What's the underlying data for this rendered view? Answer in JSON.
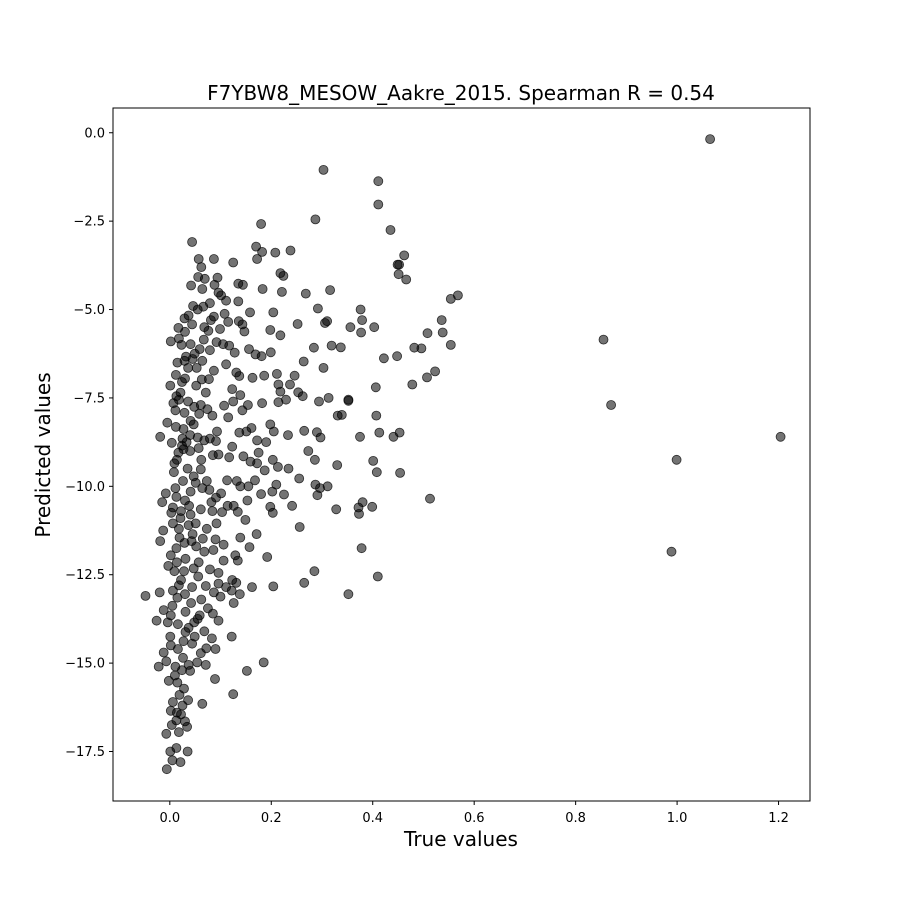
{
  "chart_data": {
    "type": "scatter",
    "title": "F7YBW8_MESOW_Aakre_2015. Spearman R = 0.54",
    "xlabel": "True values",
    "ylabel": "Predicted values",
    "xlim": [
      -0.112,
      1.262
    ],
    "ylim": [
      -18.9,
      0.7
    ],
    "xticks": [
      0.0,
      0.2,
      0.4,
      0.6,
      0.8,
      1.0,
      1.2
    ],
    "xtick_labels": [
      "0.0",
      "0.2",
      "0.4",
      "0.6",
      "0.8",
      "1.0",
      "1.2"
    ],
    "yticks": [
      0.0,
      -2.5,
      -5.0,
      -7.5,
      -10.0,
      -12.5,
      -15.0,
      -17.5
    ],
    "ytick_labels": [
      "0.0",
      "−2.5",
      "−5.0",
      "−7.5",
      "−10.0",
      "−12.5",
      "−15.0",
      "−17.5"
    ],
    "grid": false,
    "marker_color": "#000000",
    "marker_alpha": 0.55,
    "points": [
      [
        1.065,
        -0.18
      ],
      [
        0.303,
        -1.05
      ],
      [
        0.411,
        -1.37
      ],
      [
        0.411,
        -2.03
      ],
      [
        0.287,
        -2.45
      ],
      [
        0.18,
        -2.58
      ],
      [
        0.435,
        -2.75
      ],
      [
        0.044,
        -3.09
      ],
      [
        0.17,
        -3.22
      ],
      [
        0.182,
        -3.37
      ],
      [
        0.208,
        -3.39
      ],
      [
        0.238,
        -3.33
      ],
      [
        0.462,
        -3.47
      ],
      [
        0.057,
        -3.57
      ],
      [
        0.087,
        -3.57
      ],
      [
        0.125,
        -3.67
      ],
      [
        0.172,
        -3.57
      ],
      [
        0.062,
        -3.8
      ],
      [
        0.218,
        -3.97
      ],
      [
        0.224,
        -4.05
      ],
      [
        0.449,
        -3.73
      ],
      [
        0.452,
        -3.73
      ],
      [
        0.451,
        -4.0
      ],
      [
        0.466,
        -4.15
      ],
      [
        0.056,
        -4.08
      ],
      [
        0.069,
        -4.13
      ],
      [
        0.094,
        -4.1
      ],
      [
        0.135,
        -4.27
      ],
      [
        0.144,
        -4.3
      ],
      [
        0.088,
        -4.3
      ],
      [
        0.042,
        -4.32
      ],
      [
        0.064,
        -4.42
      ],
      [
        0.183,
        -4.42
      ],
      [
        0.221,
        -4.5
      ],
      [
        0.268,
        -4.55
      ],
      [
        0.096,
        -4.52
      ],
      [
        0.101,
        -4.6
      ],
      [
        0.111,
        -4.75
      ],
      [
        0.135,
        -4.77
      ],
      [
        0.079,
        -4.82
      ],
      [
        0.066,
        -4.92
      ],
      [
        0.055,
        -5.0
      ],
      [
        0.046,
        -4.9
      ],
      [
        0.158,
        -5.08
      ],
      [
        0.204,
        -5.08
      ],
      [
        0.292,
        -4.97
      ],
      [
        0.316,
        -4.45
      ],
      [
        0.376,
        -5.0
      ],
      [
        0.568,
        -4.6
      ],
      [
        0.554,
        -4.7
      ],
      [
        0.536,
        -5.3
      ],
      [
        0.538,
        -5.65
      ],
      [
        0.554,
        -6.0
      ],
      [
        0.508,
        -5.67
      ],
      [
        0.403,
        -5.5
      ],
      [
        0.379,
        -5.3
      ],
      [
        0.377,
        -5.65
      ],
      [
        0.356,
        -5.5
      ],
      [
        0.31,
        -5.33
      ],
      [
        0.306,
        -5.38
      ],
      [
        0.252,
        -5.41
      ],
      [
        0.218,
        -5.73
      ],
      [
        0.198,
        -5.58
      ],
      [
        0.143,
        -5.42
      ],
      [
        0.136,
        -5.33
      ],
      [
        0.115,
        -5.35
      ],
      [
        0.108,
        -5.12
      ],
      [
        0.087,
        -5.2
      ],
      [
        0.037,
        -5.17
      ],
      [
        0.029,
        -5.25
      ],
      [
        0.044,
        -5.42
      ],
      [
        0.068,
        -5.5
      ],
      [
        0.076,
        -5.6
      ],
      [
        0.017,
        -5.52
      ],
      [
        0.03,
        -5.63
      ],
      [
        0.018,
        -5.82
      ],
      [
        0.002,
        -5.9
      ],
      [
        0.023,
        -6.0
      ],
      [
        0.041,
        -5.98
      ],
      [
        0.059,
        -6.12
      ],
      [
        0.092,
        -5.92
      ],
      [
        0.105,
        -5.98
      ],
      [
        0.117,
        -6.02
      ],
      [
        0.128,
        -6.22
      ],
      [
        0.156,
        -6.12
      ],
      [
        0.169,
        -6.27
      ],
      [
        0.181,
        -6.32
      ],
      [
        0.199,
        -6.21
      ],
      [
        0.147,
        -5.62
      ],
      [
        0.284,
        -6.08
      ],
      [
        0.319,
        -6.02
      ],
      [
        0.337,
        -6.07
      ],
      [
        0.422,
        -6.38
      ],
      [
        0.448,
        -6.32
      ],
      [
        0.482,
        -6.08
      ],
      [
        0.496,
        -6.1
      ],
      [
        0.523,
        -6.75
      ],
      [
        0.507,
        -6.92
      ],
      [
        0.478,
        -7.12
      ],
      [
        0.406,
        -7.2
      ],
      [
        0.352,
        -7.55
      ],
      [
        0.313,
        -7.5
      ],
      [
        0.303,
        -6.65
      ],
      [
        0.264,
        -6.47
      ],
      [
        0.246,
        -6.87
      ],
      [
        0.211,
        -6.82
      ],
      [
        0.214,
        -7.12
      ],
      [
        0.218,
        -7.32
      ],
      [
        0.237,
        -7.12
      ],
      [
        0.253,
        -7.34
      ],
      [
        0.186,
        -6.87
      ],
      [
        0.163,
        -6.93
      ],
      [
        0.137,
        -6.88
      ],
      [
        0.131,
        -6.78
      ],
      [
        0.087,
        -6.73
      ],
      [
        0.077,
        -6.97
      ],
      [
        0.063,
        -6.98
      ],
      [
        0.053,
        -6.65
      ],
      [
        0.045,
        -6.4
      ],
      [
        0.032,
        -6.33
      ],
      [
        0.029,
        -6.45
      ],
      [
        0.015,
        -6.5
      ],
      [
        0.012,
        -6.85
      ],
      [
        0.03,
        -6.95
      ],
      [
        0.001,
        -7.15
      ],
      [
        0.021,
        -7.35
      ],
      [
        0.018,
        -7.55
      ],
      [
        0.036,
        -7.6
      ],
      [
        0.007,
        -7.65
      ],
      [
        0.011,
        -7.85
      ],
      [
        0.029,
        -7.92
      ],
      [
        0.048,
        -7.75
      ],
      [
        0.061,
        -7.7
      ],
      [
        0.074,
        -7.82
      ],
      [
        0.084,
        -8.0
      ],
      [
        0.107,
        -7.72
      ],
      [
        0.125,
        -7.6
      ],
      [
        0.139,
        -7.42
      ],
      [
        0.154,
        -7.7
      ],
      [
        0.182,
        -7.65
      ],
      [
        0.214,
        -7.62
      ],
      [
        0.229,
        -7.55
      ],
      [
        0.262,
        -7.45
      ],
      [
        0.294,
        -7.6
      ],
      [
        0.331,
        -8.0
      ],
      [
        0.339,
        -7.98
      ],
      [
        0.352,
        -7.58
      ],
      [
        0.407,
        -8.0
      ],
      [
        0.413,
        -8.48
      ],
      [
        0.441,
        -8.6
      ],
      [
        0.453,
        -8.48
      ],
      [
        0.375,
        -8.6
      ],
      [
        0.297,
        -8.62
      ],
      [
        0.29,
        -8.47
      ],
      [
        0.265,
        -8.43
      ],
      [
        0.233,
        -8.55
      ],
      [
        0.205,
        -8.45
      ],
      [
        0.198,
        -8.25
      ],
      [
        0.19,
        -8.75
      ],
      [
        0.172,
        -8.7
      ],
      [
        0.151,
        -8.45
      ],
      [
        0.137,
        -8.48
      ],
      [
        0.123,
        -8.88
      ],
      [
        0.091,
        -8.72
      ],
      [
        0.079,
        -8.65
      ],
      [
        0.068,
        -8.7
      ],
      [
        0.055,
        -8.62
      ],
      [
        0.04,
        -8.55
      ],
      [
        0.027,
        -8.38
      ],
      [
        0.012,
        -8.32
      ],
      [
        -0.005,
        -8.2
      ],
      [
        -0.019,
        -8.6
      ],
      [
        0.004,
        -8.77
      ],
      [
        0.024,
        -8.85
      ],
      [
        0.04,
        -9.0
      ],
      [
        0.057,
        -8.92
      ],
      [
        0.085,
        -9.12
      ],
      [
        0.096,
        -9.1
      ],
      [
        0.117,
        -9.18
      ],
      [
        0.145,
        -9.15
      ],
      [
        0.159,
        -9.3
      ],
      [
        0.172,
        -9.35
      ],
      [
        0.203,
        -9.25
      ],
      [
        0.213,
        -9.45
      ],
      [
        0.234,
        -9.5
      ],
      [
        0.273,
        -9.0
      ],
      [
        0.286,
        -9.25
      ],
      [
        0.33,
        -9.4
      ],
      [
        0.401,
        -9.28
      ],
      [
        0.408,
        -9.6
      ],
      [
        0.454,
        -9.62
      ],
      [
        0.513,
        -10.35
      ],
      [
        0.399,
        -10.58
      ],
      [
        0.38,
        -10.45
      ],
      [
        0.372,
        -10.6
      ],
      [
        0.373,
        -10.78
      ],
      [
        0.328,
        -10.65
      ],
      [
        0.311,
        -10.0
      ],
      [
        0.296,
        -10.05
      ],
      [
        0.287,
        -9.95
      ],
      [
        0.291,
        -10.25
      ],
      [
        0.255,
        -9.78
      ],
      [
        0.225,
        -10.23
      ],
      [
        0.202,
        -10.15
      ],
      [
        0.18,
        -10.22
      ],
      [
        0.168,
        -9.83
      ],
      [
        0.155,
        -10.0
      ],
      [
        0.139,
        -10.0
      ],
      [
        0.132,
        -9.85
      ],
      [
        0.113,
        -9.83
      ],
      [
        0.101,
        -10.2
      ],
      [
        0.091,
        -10.32
      ],
      [
        0.078,
        -10.1
      ],
      [
        0.064,
        -10.05
      ],
      [
        0.051,
        -9.9
      ],
      [
        0.041,
        -10.15
      ],
      [
        0.03,
        -10.4
      ],
      [
        0.013,
        -10.3
      ],
      [
        -0.008,
        -10.2
      ],
      [
        -0.015,
        -10.45
      ],
      [
        0.006,
        -10.6
      ],
      [
        0.022,
        -10.7
      ],
      [
        0.041,
        -10.8
      ],
      [
        0.061,
        -10.65
      ],
      [
        0.084,
        -10.7
      ],
      [
        0.103,
        -10.73
      ],
      [
        0.114,
        -10.55
      ],
      [
        0.126,
        -10.55
      ],
      [
        0.134,
        -10.72
      ],
      [
        0.153,
        -10.4
      ],
      [
        0.198,
        -10.58
      ],
      [
        0.203,
        -10.75
      ],
      [
        0.378,
        -11.75
      ],
      [
        0.41,
        -12.55
      ],
      [
        0.352,
        -13.05
      ],
      [
        0.285,
        -12.4
      ],
      [
        0.265,
        -12.73
      ],
      [
        0.204,
        -12.83
      ],
      [
        0.192,
        -12.0
      ],
      [
        0.157,
        -11.72
      ],
      [
        0.139,
        -11.45
      ],
      [
        0.134,
        -12.1
      ],
      [
        0.123,
        -12.65
      ],
      [
        0.122,
        -12.95
      ],
      [
        0.131,
        -12.73
      ],
      [
        0.126,
        -13.3
      ],
      [
        0.162,
        -12.85
      ],
      [
        0.106,
        -12.1
      ],
      [
        0.096,
        -12.45
      ],
      [
        0.086,
        -11.8
      ],
      [
        0.09,
        -11.5
      ],
      [
        0.073,
        -11.2
      ],
      [
        0.065,
        -11.48
      ],
      [
        0.052,
        -11.7
      ],
      [
        0.045,
        -11.35
      ],
      [
        0.029,
        -11.6
      ],
      [
        0.018,
        -11.2
      ],
      [
        0.006,
        -11.05
      ],
      [
        -0.013,
        -11.25
      ],
      [
        -0.019,
        -11.55
      ],
      [
        0.002,
        -11.95
      ],
      [
        0.014,
        -12.15
      ],
      [
        0.028,
        -12.4
      ],
      [
        0.047,
        -12.32
      ],
      [
        0.056,
        -12.55
      ],
      [
        0.071,
        -12.82
      ],
      [
        0.087,
        -13.0
      ],
      [
        0.096,
        -12.75
      ],
      [
        0.1,
        -13.12
      ],
      [
        0.085,
        -13.6
      ],
      [
        0.075,
        -13.45
      ],
      [
        0.062,
        -13.2
      ],
      [
        0.042,
        -13.3
      ],
      [
        0.03,
        -13.05
      ],
      [
        0.015,
        -13.15
      ],
      [
        0.005,
        -13.38
      ],
      [
        -0.012,
        -13.5
      ],
      [
        -0.02,
        -13.0
      ],
      [
        -0.048,
        -13.1
      ],
      [
        -0.026,
        -13.8
      ],
      [
        -0.004,
        -13.85
      ],
      [
        0.016,
        -13.9
      ],
      [
        0.037,
        -14.0
      ],
      [
        0.055,
        -13.75
      ],
      [
        0.068,
        -14.1
      ],
      [
        0.083,
        -14.3
      ],
      [
        0.096,
        -13.8
      ],
      [
        0.122,
        -14.25
      ],
      [
        0.09,
        -14.6
      ],
      [
        0.072,
        -14.58
      ],
      [
        0.061,
        -14.72
      ],
      [
        0.054,
        -14.98
      ],
      [
        0.044,
        -14.45
      ],
      [
        0.027,
        -14.38
      ],
      [
        0.016,
        -14.6
      ],
      [
        0.002,
        -14.5
      ],
      [
        -0.012,
        -14.7
      ],
      [
        -0.007,
        -14.95
      ],
      [
        0.011,
        -15.1
      ],
      [
        0.024,
        -15.2
      ],
      [
        -0.022,
        -15.1
      ],
      [
        -0.002,
        -15.5
      ],
      [
        0.015,
        -15.55
      ],
      [
        0.028,
        -15.72
      ],
      [
        0.019,
        -15.9
      ],
      [
        0.006,
        -16.1
      ],
      [
        0.002,
        -16.35
      ],
      [
        0.014,
        -16.4
      ],
      [
        0.025,
        -16.2
      ],
      [
        0.013,
        -16.62
      ],
      [
        0.004,
        -16.75
      ],
      [
        0.03,
        -16.65
      ],
      [
        0.034,
        -16.8
      ],
      [
        -0.007,
        -17.0
      ],
      [
        0.001,
        -17.5
      ],
      [
        0.013,
        -17.4
      ],
      [
        0.035,
        -17.5
      ],
      [
        0.005,
        -17.75
      ],
      [
        0.021,
        -17.8
      ],
      [
        -0.006,
        -18.0
      ],
      [
        0.125,
        -15.88
      ],
      [
        0.152,
        -15.22
      ],
      [
        0.185,
        -14.98
      ],
      [
        0.855,
        -5.85
      ],
      [
        0.87,
        -7.7
      ],
      [
        1.204,
        -8.6
      ],
      [
        0.999,
        -9.25
      ],
      [
        0.989,
        -11.85
      ],
      [
        0.04,
        -15.22
      ],
      [
        0.031,
        -14.12
      ],
      [
        0.018,
        -12.8
      ],
      [
        0.008,
        -9.6
      ],
      [
        0.014,
        -9.25
      ],
      [
        0.027,
        -8.95
      ],
      [
        0.035,
        -9.5
      ],
      [
        0.047,
        -9.72
      ],
      [
        0.061,
        -9.52
      ],
      [
        0.021,
        -10.9
      ],
      [
        0.037,
        -11.1
      ],
      [
        0.009,
        -12.4
      ],
      [
        0.022,
        -12.65
      ],
      [
        0.006,
        -12.95
      ],
      [
        0.031,
        -13.55
      ],
      [
        0.048,
        -13.85
      ],
      [
        0.001,
        -14.25
      ],
      [
        0.026,
        -14.85
      ],
      [
        0.01,
        -15.35
      ],
      [
        0.036,
        -16.05
      ],
      [
        0.018,
        -16.95
      ],
      [
        0.002,
        -13.65
      ],
      [
        0.044,
        -12.85
      ],
      [
        0.057,
        -12.15
      ],
      [
        0.068,
        -11.85
      ],
      [
        0.051,
        -11.05
      ],
      [
        0.038,
        -10.55
      ],
      [
        0.026,
        -9.85
      ],
      [
        0.017,
        -9.05
      ],
      [
        0.033,
        -8.75
      ],
      [
        0.047,
        -8.25
      ],
      [
        0.058,
        -7.95
      ],
      [
        0.024,
        -7.05
      ],
      [
        0.036,
        -6.65
      ],
      [
        0.049,
        -6.25
      ],
      [
        0.067,
        -5.85
      ],
      [
        0.081,
        -5.3
      ],
      [
        0.099,
        -5.55
      ],
      [
        0.062,
        -9.25
      ],
      [
        0.073,
        -9.85
      ],
      [
        0.082,
        -10.45
      ],
      [
        0.092,
        -11.05
      ],
      [
        0.106,
        -11.65
      ],
      [
        0.079,
        -12.35
      ],
      [
        0.093,
        -8.45
      ],
      [
        0.115,
        -8.05
      ],
      [
        0.071,
        -7.35
      ],
      [
        0.011,
        -10.05
      ],
      [
        0.003,
        -10.75
      ],
      [
        0.019,
        -11.45
      ],
      [
        0.013,
        -11.75
      ],
      [
        -0.003,
        -12.25
      ],
      [
        0.031,
        -12.05
      ],
      [
        0.043,
        -11.55
      ],
      [
        0.009,
        -9.35
      ],
      [
        0.025,
        -8.65
      ],
      [
        0.041,
        -8.15
      ],
      [
        0.013,
        -7.45
      ],
      [
        0.052,
        -7.15
      ],
      [
        0.064,
        -6.45
      ],
      [
        0.079,
        -6.15
      ],
      [
        0.111,
        -6.55
      ],
      [
        0.123,
        -7.25
      ],
      [
        0.143,
        -7.85
      ],
      [
        0.161,
        -8.35
      ],
      [
        0.175,
        -9.05
      ],
      [
        0.187,
        -9.55
      ],
      [
        0.21,
        -9.95
      ],
      [
        0.241,
        -10.55
      ],
      [
        0.256,
        -11.15
      ],
      [
        0.171,
        -11.35
      ],
      [
        0.149,
        -10.95
      ],
      [
        0.129,
        -11.95
      ],
      [
        0.111,
        -12.85
      ],
      [
        0.138,
        -13.05
      ],
      [
        0.059,
        -13.65
      ],
      [
        0.071,
        -15.05
      ],
      [
        0.089,
        -15.45
      ],
      [
        0.037,
        -15.05
      ],
      [
        0.049,
        -14.25
      ],
      [
        0.064,
        -16.15
      ],
      [
        0.022,
        -16.45
      ]
    ]
  }
}
